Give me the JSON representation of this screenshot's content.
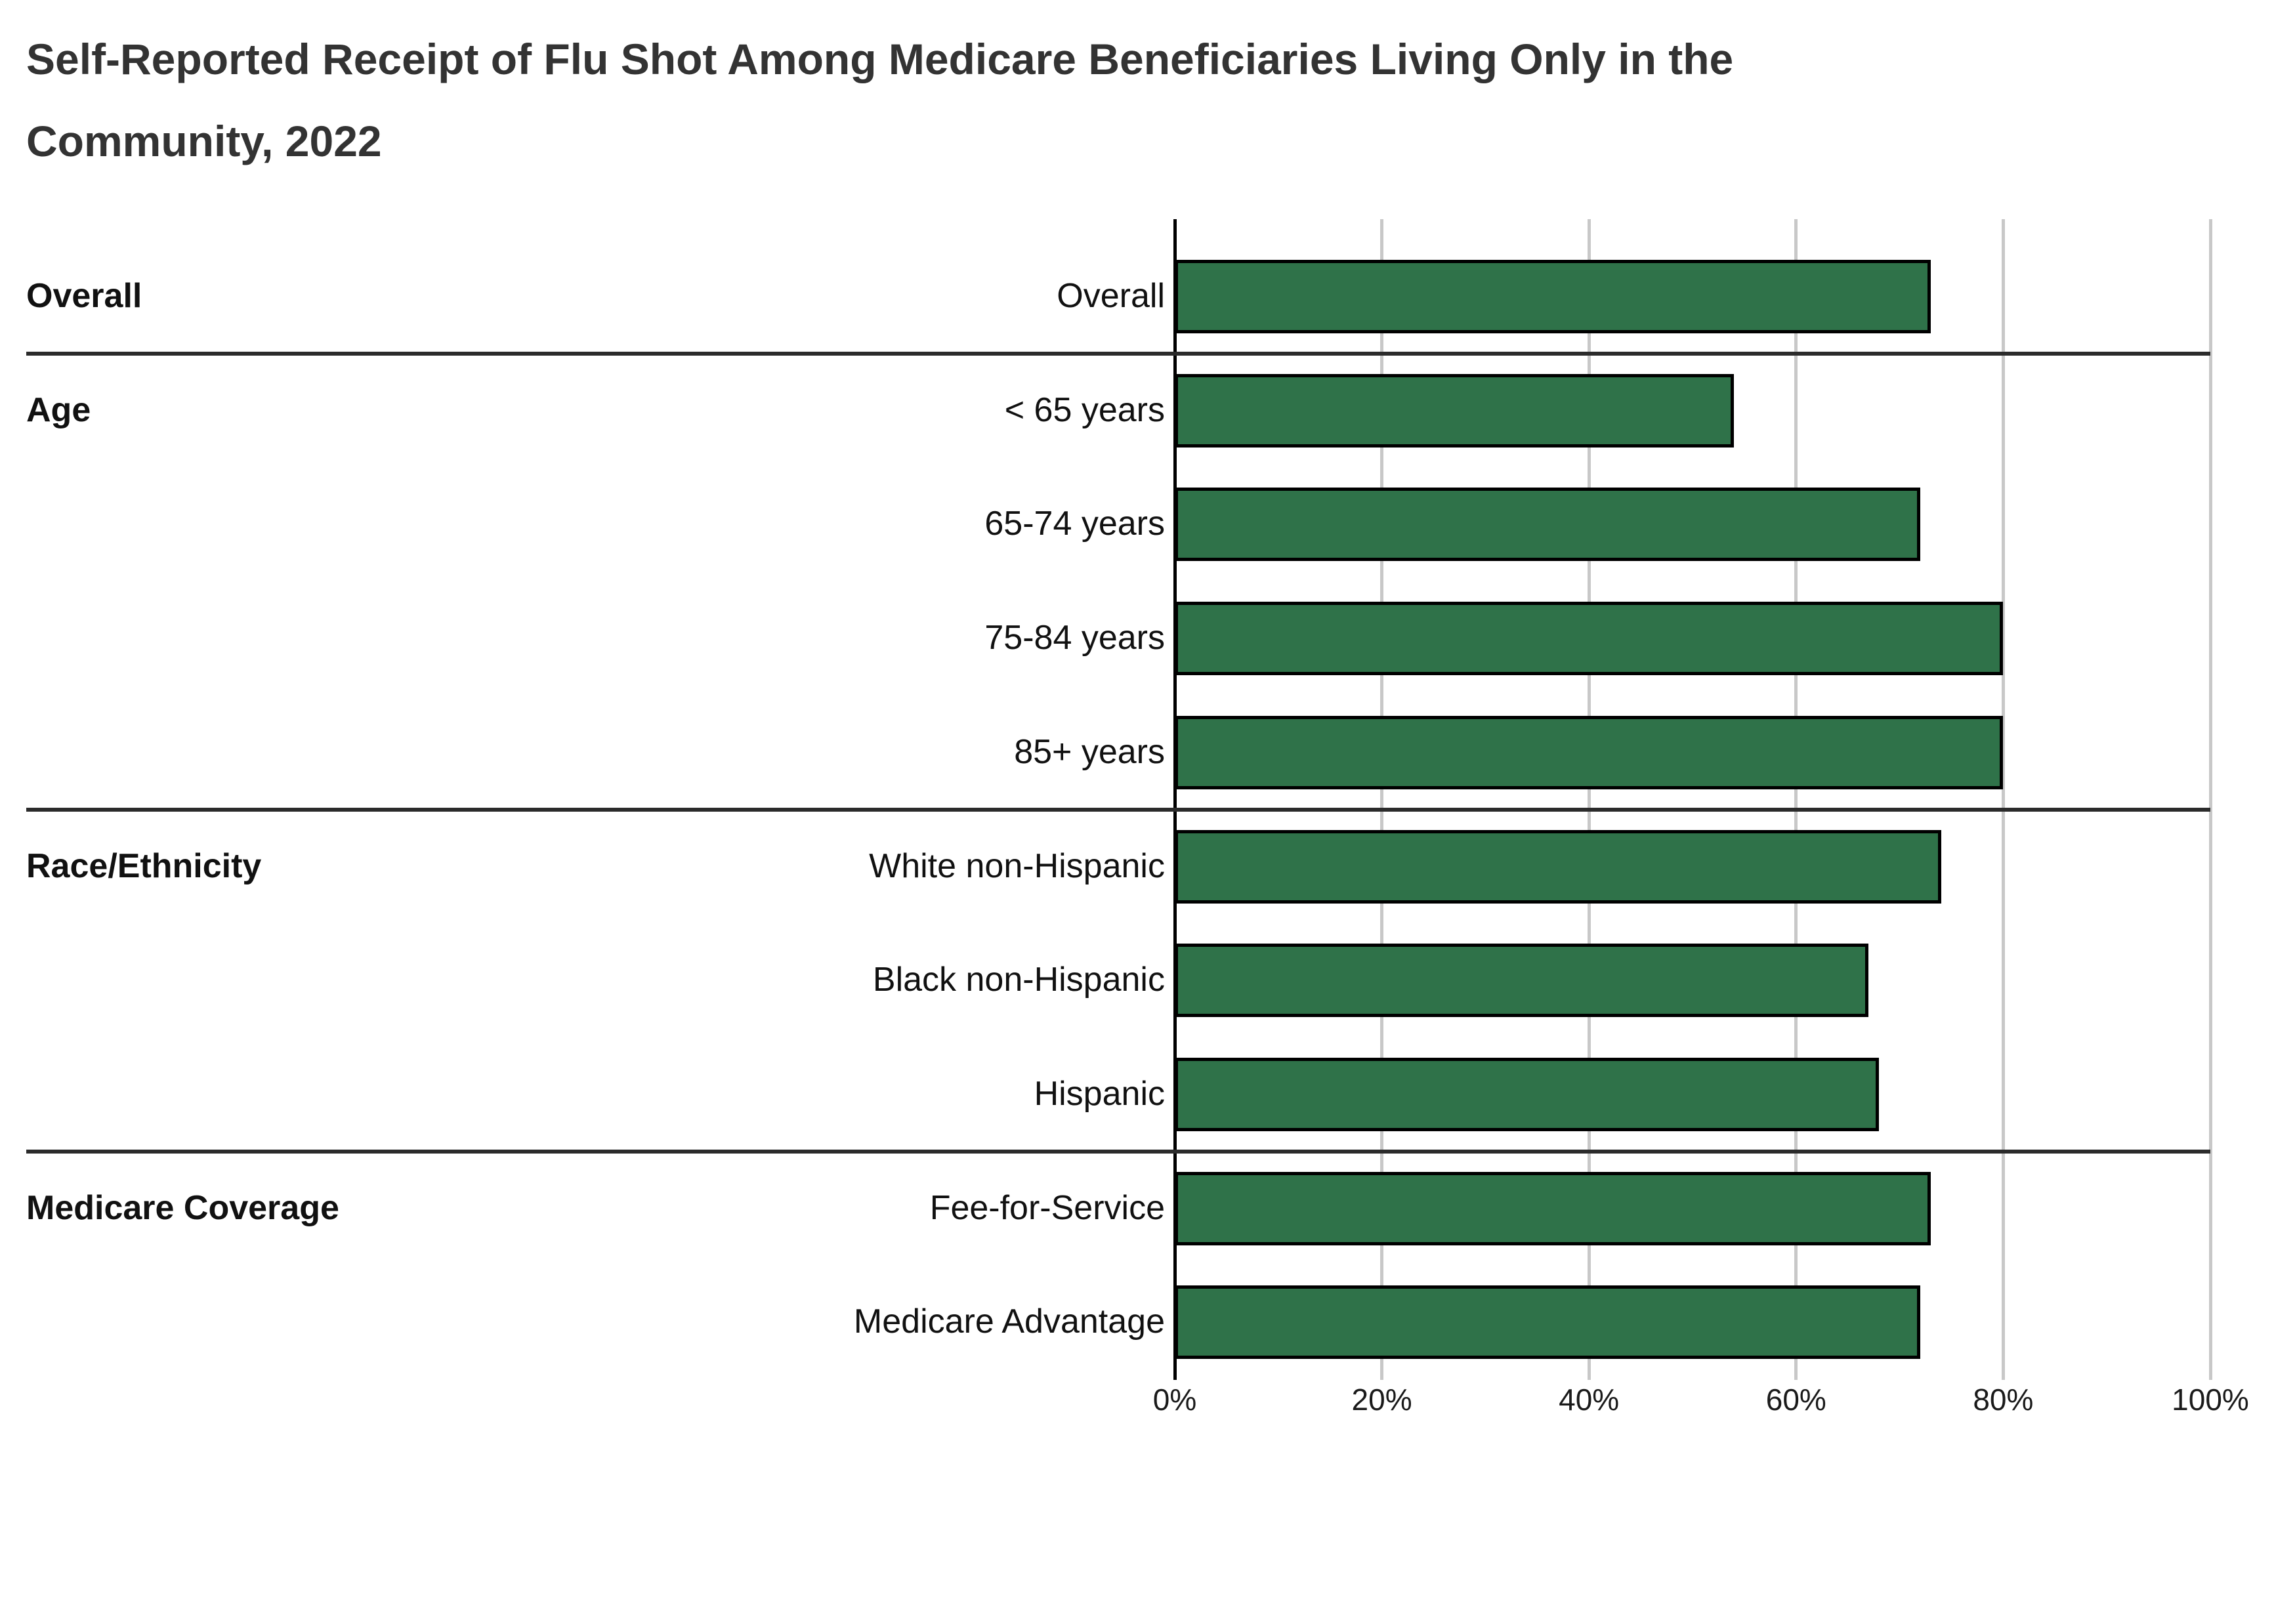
{
  "title": {
    "line1": "Self-Reported Receipt of Flu Shot Among Medicare Beneficiaries Living Only in the",
    "line2": "Community, 2022",
    "full": "Self-Reported Receipt of Flu Shot Among Medicare Beneficiaries Living Only in the Community, 2022"
  },
  "chart_data": {
    "type": "bar",
    "orientation": "horizontal",
    "unit": "percent",
    "title": "Self-Reported Receipt of Flu Shot Among Medicare Beneficiaries Living Only in the Community, 2022",
    "xlabel": "",
    "ylabel": "",
    "xlim": [
      0,
      100
    ],
    "x_ticks": [
      "0%",
      "20%",
      "40%",
      "60%",
      "80%",
      "100%"
    ],
    "grid": "vertical",
    "legend": "none",
    "groups": [
      {
        "label": "Overall",
        "rows": [
          {
            "category": "Overall",
            "value": 73
          }
        ]
      },
      {
        "label": "Age",
        "rows": [
          {
            "category": "< 65 years",
            "value": 54
          },
          {
            "category": "65-74 years",
            "value": 72
          },
          {
            "category": "75-84 years",
            "value": 80
          },
          {
            "category": "85+ years",
            "value": 80
          }
        ]
      },
      {
        "label": "Race/Ethnicity",
        "rows": [
          {
            "category": "White non-Hispanic",
            "value": 74
          },
          {
            "category": "Black non-Hispanic",
            "value": 67
          },
          {
            "category": "Hispanic",
            "value": 68
          }
        ]
      },
      {
        "label": "Medicare Coverage",
        "rows": [
          {
            "category": "Fee-for-Service",
            "value": 73
          },
          {
            "category": "Medicare Advantage",
            "value": 72
          }
        ]
      }
    ],
    "colors": {
      "bar_fill": "#2F7249",
      "bar_border": "#000000",
      "gridline": "#C8C8C8",
      "axis_line": "#000000",
      "section_divider": "#2B2B2B",
      "title_text": "#333333",
      "label_text": "#111111"
    }
  }
}
